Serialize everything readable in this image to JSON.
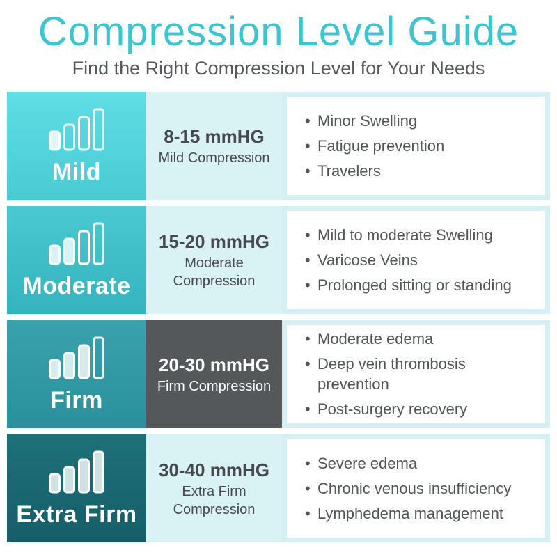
{
  "header": {
    "title": "Compression Level Guide",
    "subtitle": "Find the Right Compression Level for Your Needs"
  },
  "colors": {
    "title_teal": "#3cc5d0",
    "subtitle_gray": "#55585c",
    "body_text_gray": "#515558",
    "panel_border": "#d6eff2",
    "panel_bg": "#ffffff",
    "level_label_text": "#ffffff"
  },
  "levels": [
    {
      "label": "Mild",
      "range": "8-15 mmHG",
      "caption": "Mild Compression",
      "icon": "signal-bars-1-of-4",
      "filled_bars": 1,
      "colors": {
        "cell_top": "#60dde5",
        "cell_bottom": "#49cbd4",
        "middle_bg": "#d9f2f4",
        "middle_text": "#46494d"
      },
      "uses": [
        "Minor Swelling",
        "Fatigue prevention",
        "Travelers"
      ]
    },
    {
      "label": "Moderate",
      "range": "15-20 mmHG",
      "caption": "Moderate Compression",
      "icon": "signal-bars-2-of-4",
      "filled_bars": 2,
      "colors": {
        "cell_top": "#4ac9d2",
        "cell_bottom": "#35b3be",
        "middle_bg": "#d9f2f4",
        "middle_text": "#46494d"
      },
      "uses": [
        "Mild to moderate Swelling",
        "Varicose Veins",
        "Prolonged sitting or standing"
      ]
    },
    {
      "label": "Firm",
      "range": "20-30 mmHG",
      "caption": "Firm Compression",
      "icon": "signal-bars-3-of-4",
      "filled_bars": 3,
      "colors": {
        "cell_top": "#3aa2ac",
        "cell_bottom": "#2a919c",
        "middle_bg": "#55585a",
        "middle_text": "#ffffff"
      },
      "uses": [
        "Moderate edema",
        "Deep vein thrombosis prevention",
        "Post-surgery recovery"
      ]
    },
    {
      "label": "Extra Firm",
      "range": "30-40 mmHG",
      "caption": "Extra Firm Compression",
      "icon": "signal-bars-4-of-4",
      "filled_bars": 4,
      "colors": {
        "cell_top": "#1e7179",
        "cell_bottom": "#155e68",
        "middle_bg": "#d9f2f4",
        "middle_text": "#46494d"
      },
      "uses": [
        "Severe edema",
        "Chronic venous insufficiency",
        "Lymphedema management"
      ]
    }
  ]
}
